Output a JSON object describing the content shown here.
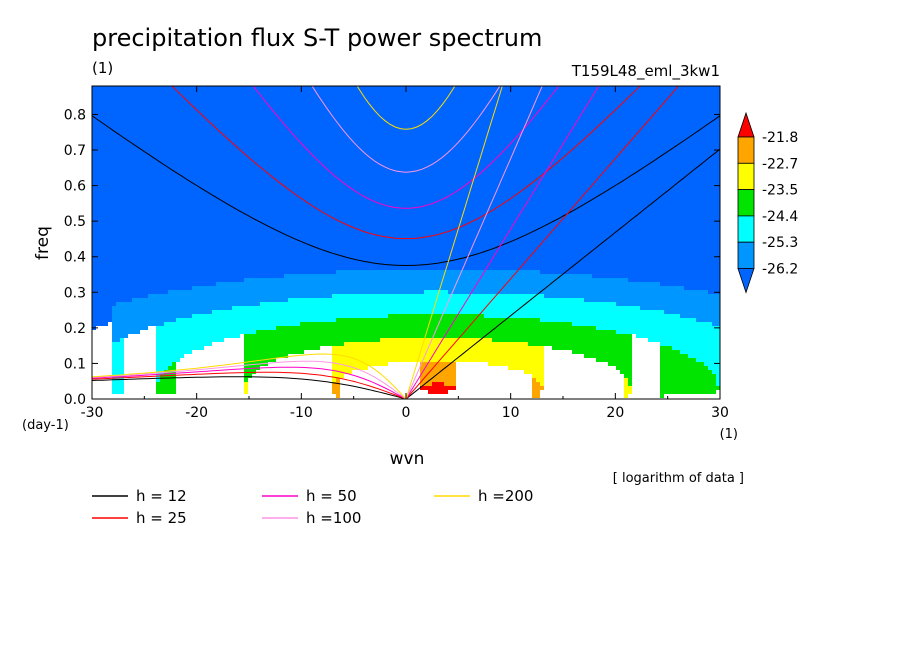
{
  "chart_data": {
    "type": "heatmap",
    "title": "precipitation flux S-T power spectrum",
    "units_left": "(1)",
    "experiment": "T159L48_eml_3kw1",
    "xlabel": "wvn",
    "ylabel": "freq",
    "x_unit_label": "(1)",
    "y_unit_label": "(day-1)",
    "note": "[ logarithm of data ]",
    "xlim": [
      -30,
      30
    ],
    "ylim": [
      0,
      0.88
    ],
    "x_ticks": [
      -30,
      -20,
      -10,
      0,
      10,
      20,
      30
    ],
    "y_ticks": [
      0.0,
      0.1,
      0.2,
      0.3,
      0.4,
      0.5,
      0.6,
      0.7,
      0.8
    ],
    "y_tick_labels": [
      "0.0",
      "0.1",
      "0.2",
      "0.3",
      "0.4",
      "0.5",
      "0.6",
      "0.7",
      "0.8"
    ],
    "colorbar": {
      "levels": [
        -26.2,
        -25.3,
        -24.4,
        -23.5,
        -22.7,
        -21.8
      ],
      "labels": [
        "-26.2",
        "-25.3",
        "-24.4",
        "-23.5",
        "-22.7",
        "-21.8"
      ],
      "colors": [
        "#0064ff",
        "#0096ff",
        "#00ffff",
        "#00e400",
        "#ffff00",
        "#ffa500",
        "#ff0000"
      ]
    },
    "field": {
      "description": "log spectral power, peak near wvn 3, freq 0.03",
      "peak_x": 3,
      "peak_y": 0.03
    },
    "dispersion_curves": [
      {
        "h": 12,
        "label": "h = 12",
        "color": "#000000"
      },
      {
        "h": 25,
        "label": "h = 25",
        "color": "#ff0000"
      },
      {
        "h": 50,
        "label": "h = 50",
        "color": "#ff00c8"
      },
      {
        "h": 100,
        "label": "h =100",
        "color": "#ff96e6"
      },
      {
        "h": 200,
        "label": "h =200",
        "color": "#ffdc00"
      }
    ]
  }
}
